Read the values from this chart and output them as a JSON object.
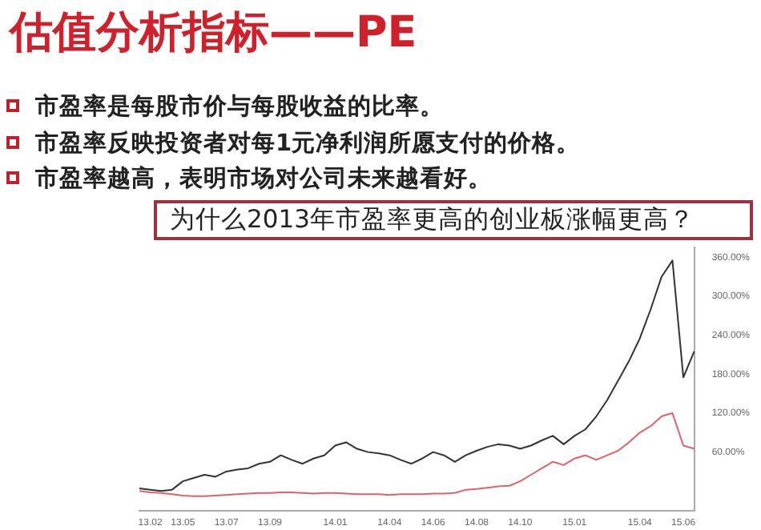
{
  "chart_data": {
    "type": "line",
    "title": "估值分析指标——PE",
    "annotations": [
      "市盈率是每股市价与每股收益的比率。",
      "市盈率反映投资者对每1元净利润所愿支付的价格。",
      "市盈率越高，表明市场对公司未来越看好。",
      "为什么2013年市盈率更高的创业板涨幅更高？"
    ],
    "categories": [
      null,
      "13.02",
      null,
      null,
      "13.05",
      null,
      null,
      null,
      "13.07",
      null,
      null,
      null,
      "13.09",
      null,
      null,
      null,
      null,
      null,
      "14.01",
      null,
      null,
      null,
      null,
      "14.04",
      null,
      null,
      null,
      "14.06",
      null,
      null,
      null,
      "14.08",
      null,
      null,
      null,
      "14.10",
      null,
      null,
      null,
      null,
      "15.01",
      null,
      null,
      null,
      null,
      null,
      "15.04",
      null,
      null,
      null,
      "15.06",
      null
    ],
    "series": [
      {
        "color": "#333333",
        "values": [
          4,
          2,
          0,
          2,
          15,
          20,
          25,
          22,
          30,
          33,
          35,
          42,
          45,
          55,
          48,
          42,
          50,
          55,
          70,
          75,
          65,
          60,
          58,
          55,
          48,
          42,
          50,
          60,
          55,
          45,
          55,
          62,
          68,
          72,
          70,
          65,
          70,
          78,
          85,
          72,
          85,
          95,
          115,
          140,
          170,
          200,
          235,
          280,
          330,
          355,
          175,
          215
        ]
      },
      {
        "color": "#e06070",
        "values": [
          0,
          -2,
          -3,
          -5,
          -7,
          -8,
          -8,
          -7,
          -6,
          -5,
          -4,
          -3,
          -3,
          -2,
          -2,
          -3,
          -4,
          -3,
          -3,
          -4,
          -5,
          -5,
          -5,
          -6,
          -5,
          -5,
          -5,
          -4,
          -4,
          -3,
          2,
          3,
          5,
          7,
          8,
          15,
          25,
          35,
          45,
          40,
          50,
          55,
          48,
          55,
          62,
          75,
          90,
          100,
          115,
          120,
          70,
          65
        ]
      }
    ],
    "ylim": [
      -30,
      375
    ],
    "yticks": [
      {
        "value": 60,
        "label": "60.00%"
      },
      {
        "value": 120,
        "label": "120.00%"
      },
      {
        "value": 180,
        "label": "180.00%"
      },
      {
        "value": 240,
        "label": "240.00%"
      },
      {
        "value": 300,
        "label": "300.00%"
      },
      {
        "value": 360,
        "label": "360.00%"
      }
    ],
    "grid": false,
    "legend": false,
    "marker": "none",
    "line_style": "solid"
  }
}
